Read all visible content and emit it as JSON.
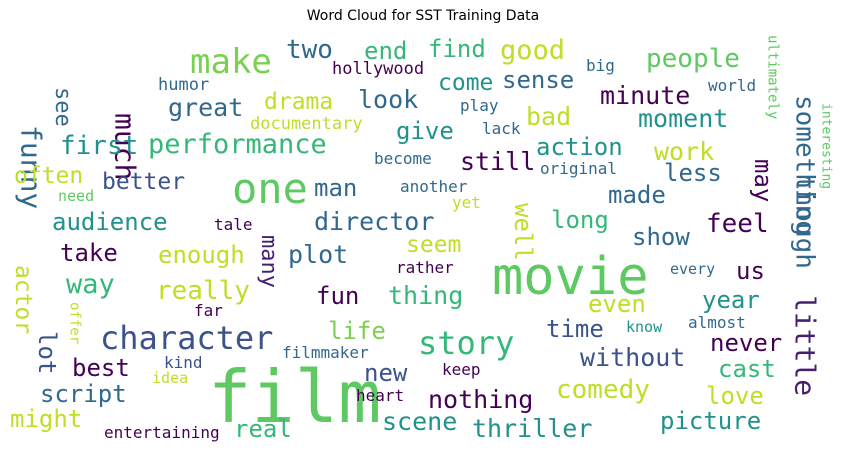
{
  "title": "Word Cloud for SST Training Data",
  "chart_data": {
    "type": "wordcloud",
    "title": "Word Cloud for SST Training Data",
    "words": [
      {
        "text": "film",
        "color": "#5ec962"
      },
      {
        "text": "movie",
        "color": "#5ec962"
      },
      {
        "text": "one",
        "color": "#5ec962"
      },
      {
        "text": "make",
        "color": "#7ad151"
      },
      {
        "text": "character",
        "color": "#3b528b"
      },
      {
        "text": "story",
        "color": "#35b779"
      },
      {
        "text": "little",
        "color": "#481f70"
      },
      {
        "text": "something",
        "color": "#31688e"
      },
      {
        "text": "though",
        "color": "#31688e"
      },
      {
        "text": "performance",
        "color": "#35b779"
      },
      {
        "text": "funny",
        "color": "#31688e"
      },
      {
        "text": "much",
        "color": "#440154"
      },
      {
        "text": "good",
        "color": "#bddf26"
      },
      {
        "text": "two",
        "color": "#31688e"
      },
      {
        "text": "end",
        "color": "#35b779"
      },
      {
        "text": "find",
        "color": "#35b779"
      },
      {
        "text": "people",
        "color": "#5ec962"
      },
      {
        "text": "great",
        "color": "#31688e"
      },
      {
        "text": "drama",
        "color": "#bddf26"
      },
      {
        "text": "look",
        "color": "#31688e"
      },
      {
        "text": "sense",
        "color": "#31688e"
      },
      {
        "text": "come",
        "color": "#21918c"
      },
      {
        "text": "minute",
        "color": "#440154"
      },
      {
        "text": "moment",
        "color": "#21918c"
      },
      {
        "text": "first",
        "color": "#21918c"
      },
      {
        "text": "give",
        "color": "#21918c"
      },
      {
        "text": "bad",
        "color": "#bddf26"
      },
      {
        "text": "action",
        "color": "#21918c"
      },
      {
        "text": "work",
        "color": "#bddf26"
      },
      {
        "text": "still",
        "color": "#440154"
      },
      {
        "text": "often",
        "color": "#bddf26"
      },
      {
        "text": "better",
        "color": "#3b528b"
      },
      {
        "text": "man",
        "color": "#31688e"
      },
      {
        "text": "made",
        "color": "#31688e"
      },
      {
        "text": "less",
        "color": "#31688e"
      },
      {
        "text": "may",
        "color": "#440154"
      },
      {
        "text": "audience",
        "color": "#21918c"
      },
      {
        "text": "director",
        "color": "#31688e"
      },
      {
        "text": "long",
        "color": "#35b779"
      },
      {
        "text": "feel",
        "color": "#440154"
      },
      {
        "text": "take",
        "color": "#440154"
      },
      {
        "text": "enough",
        "color": "#bddf26"
      },
      {
        "text": "many",
        "color": "#481f70"
      },
      {
        "text": "plot",
        "color": "#31688e"
      },
      {
        "text": "seem",
        "color": "#bddf26"
      },
      {
        "text": "show",
        "color": "#31688e"
      },
      {
        "text": "well",
        "color": "#bddf26"
      },
      {
        "text": "way",
        "color": "#35b779"
      },
      {
        "text": "really",
        "color": "#bddf26"
      },
      {
        "text": "fun",
        "color": "#440154"
      },
      {
        "text": "thing",
        "color": "#35b779"
      },
      {
        "text": "us",
        "color": "#440154"
      },
      {
        "text": "even",
        "color": "#bddf26"
      },
      {
        "text": "year",
        "color": "#21918c"
      },
      {
        "text": "actor",
        "color": "#bddf26"
      },
      {
        "text": "life",
        "color": "#7ad151"
      },
      {
        "text": "time",
        "color": "#3b528b"
      },
      {
        "text": "lot",
        "color": "#3b528b"
      },
      {
        "text": "never",
        "color": "#440154"
      },
      {
        "text": "best",
        "color": "#440154"
      },
      {
        "text": "new",
        "color": "#3b528b"
      },
      {
        "text": "without",
        "color": "#3b528b"
      },
      {
        "text": "cast",
        "color": "#35b779"
      },
      {
        "text": "script",
        "color": "#31688e"
      },
      {
        "text": "comedy",
        "color": "#bddf26"
      },
      {
        "text": "love",
        "color": "#bddf26"
      },
      {
        "text": "might",
        "color": "#bddf26"
      },
      {
        "text": "nothing",
        "color": "#440154"
      },
      {
        "text": "picture",
        "color": "#21918c"
      },
      {
        "text": "real",
        "color": "#35b779"
      },
      {
        "text": "scene",
        "color": "#21918c"
      },
      {
        "text": "thriller",
        "color": "#21918c"
      },
      {
        "text": "see",
        "color": "#31688e"
      },
      {
        "text": "hollywood",
        "color": "#440154"
      },
      {
        "text": "humor",
        "color": "#31688e"
      },
      {
        "text": "big",
        "color": "#31688e"
      },
      {
        "text": "world",
        "color": "#31688e"
      },
      {
        "text": "ultimately",
        "color": "#5ec962"
      },
      {
        "text": "documentary",
        "color": "#bddf26"
      },
      {
        "text": "play",
        "color": "#31688e"
      },
      {
        "text": "lack",
        "color": "#31688e"
      },
      {
        "text": "interesting",
        "color": "#5ec962"
      },
      {
        "text": "become",
        "color": "#31688e"
      },
      {
        "text": "original",
        "color": "#31688e"
      },
      {
        "text": "need",
        "color": "#5ec962"
      },
      {
        "text": "another",
        "color": "#31688e"
      },
      {
        "text": "yet",
        "color": "#bddf26"
      },
      {
        "text": "tale",
        "color": "#440154"
      },
      {
        "text": "rather",
        "color": "#440154"
      },
      {
        "text": "every",
        "color": "#31688e"
      },
      {
        "text": "far",
        "color": "#440154"
      },
      {
        "text": "offer",
        "color": "#bddf26"
      },
      {
        "text": "almost",
        "color": "#31688e"
      },
      {
        "text": "know",
        "color": "#21918c"
      },
      {
        "text": "kind",
        "color": "#3b528b"
      },
      {
        "text": "filmmaker",
        "color": "#31688e"
      },
      {
        "text": "idea",
        "color": "#bddf26"
      },
      {
        "text": "keep",
        "color": "#440154"
      },
      {
        "text": "heart",
        "color": "#440154"
      },
      {
        "text": "entertaining",
        "color": "#440154"
      }
    ]
  }
}
